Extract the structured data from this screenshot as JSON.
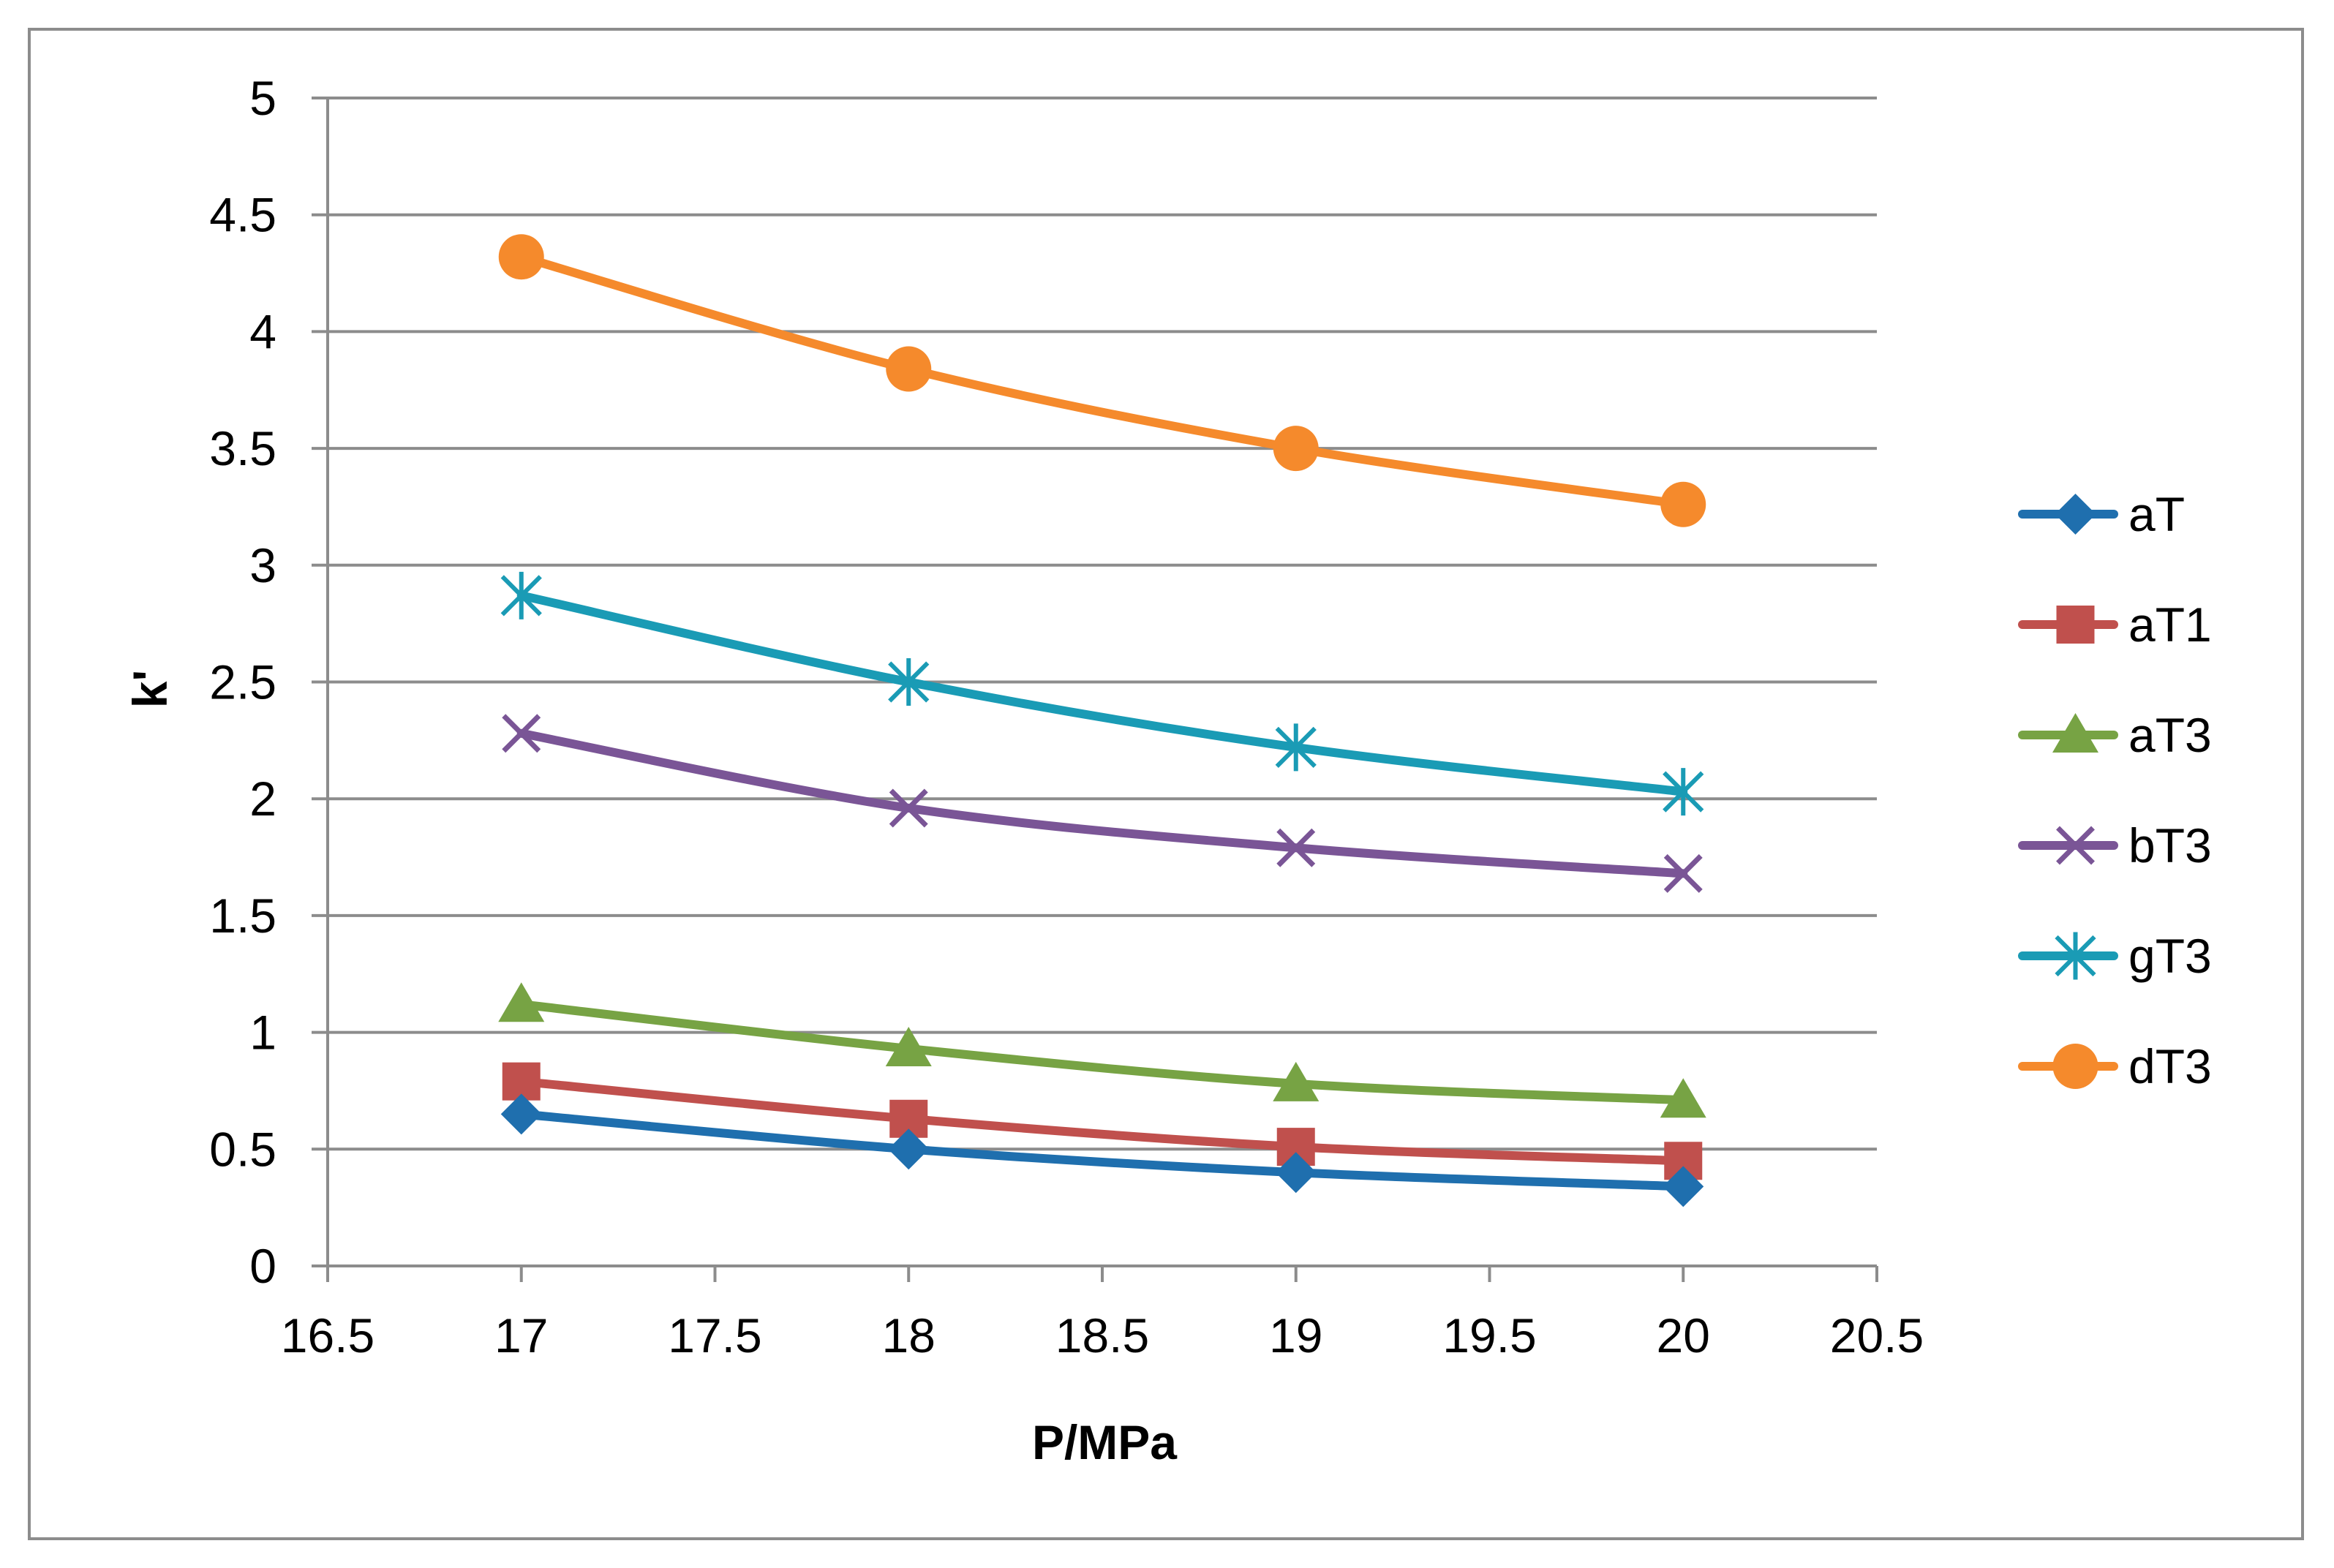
{
  "chart_data": {
    "type": "line",
    "title": "",
    "xlabel": "P/MPa",
    "ylabel": "k'",
    "xlim": [
      16.5,
      20.5
    ],
    "ylim": [
      0,
      5
    ],
    "xticks": [
      "16.5",
      "17",
      "17.5",
      "18",
      "18.5",
      "19",
      "19.5",
      "20",
      "20.5"
    ],
    "yticks": [
      "0",
      "0.5",
      "1",
      "1.5",
      "2",
      "2.5",
      "3",
      "3.5",
      "4",
      "4.5",
      "5"
    ],
    "grid": "horizontal",
    "legend_position": "right",
    "x": [
      17,
      18,
      19,
      20
    ],
    "series": [
      {
        "name": "aT",
        "marker": "diamond",
        "color": "#1f6fae",
        "values": [
          0.65,
          0.5,
          0.4,
          0.34
        ]
      },
      {
        "name": "aT1",
        "marker": "square",
        "color": "#c0504d",
        "values": [
          0.79,
          0.63,
          0.51,
          0.45
        ]
      },
      {
        "name": "aT3",
        "marker": "triangle",
        "color": "#77a344",
        "values": [
          1.12,
          0.93,
          0.78,
          0.71
        ]
      },
      {
        "name": "bT3",
        "marker": "x",
        "color": "#7a5596",
        "values": [
          2.28,
          1.96,
          1.79,
          1.68
        ]
      },
      {
        "name": "gT3",
        "marker": "star",
        "color": "#1a9bb5",
        "values": [
          2.87,
          2.5,
          2.22,
          2.03
        ]
      },
      {
        "name": "dT3",
        "marker": "circle",
        "color": "#f58a2c",
        "values": [
          4.32,
          3.84,
          3.5,
          3.26
        ]
      }
    ]
  }
}
